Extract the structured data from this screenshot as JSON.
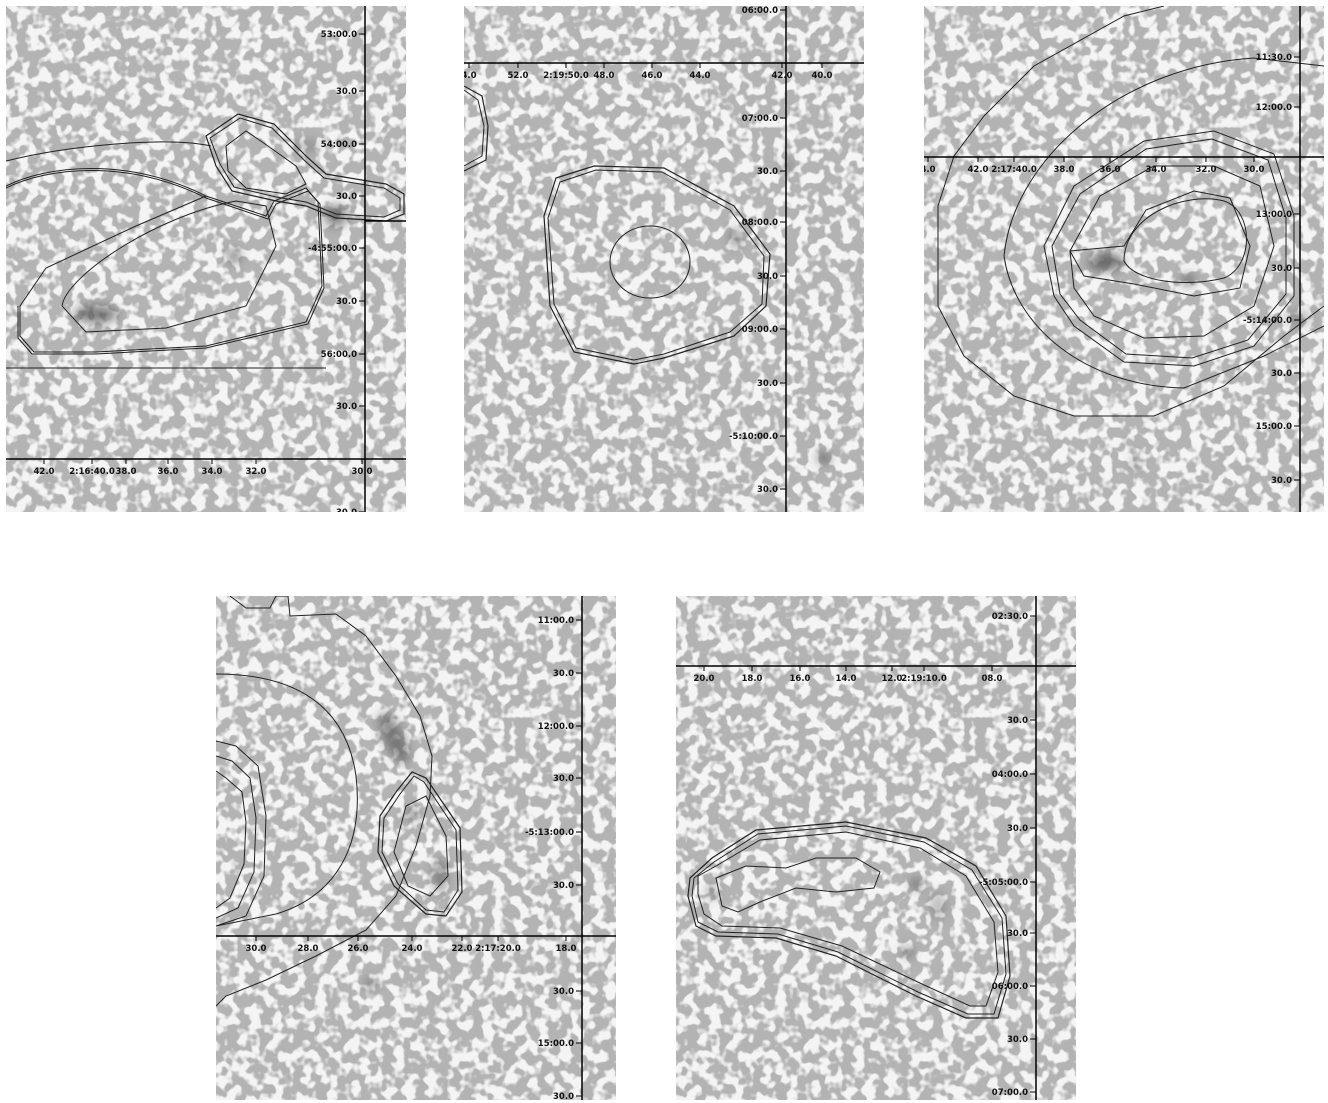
{
  "panels": [
    {
      "id": "panel-1",
      "ra_ticks": [
        "42.0",
        "2:16:40.0",
        "38.0",
        "36.0",
        "34.0",
        "32.0",
        "30.0"
      ],
      "dec_ticks": [
        "53:00.0",
        "30.0",
        "54:00.0",
        "30.0",
        "-4:55:00.0",
        "30.0",
        "56:00.0",
        "30.0",
        "30.0"
      ]
    },
    {
      "id": "panel-2",
      "ra_ticks": [
        "4.0",
        "52.0",
        "2:19:50.0",
        "48.0",
        "46.0",
        "44.0",
        "42.0",
        "40.0"
      ],
      "dec_ticks": [
        "06:00.0",
        "07:00.0",
        "30.0",
        "08:00.0",
        "30.0",
        "09:00.0",
        "30.0",
        "-5:10:00.0",
        "30.0"
      ]
    },
    {
      "id": "panel-3",
      "ra_ticks": [
        "4.0",
        "42.0",
        "2:17:40.0",
        "38.0",
        "36.0",
        "34.0",
        "32.0",
        "30.0"
      ],
      "dec_ticks": [
        "11:30.0",
        "12:00.0",
        "13:00.0",
        "30.0",
        "-5:14:00.0",
        "30.0",
        "15:00.0",
        "30.0"
      ]
    },
    {
      "id": "panel-4",
      "ra_ticks": [
        "30.0",
        "28.0",
        "26.0",
        "24.0",
        "22.0",
        "2:17:20.0",
        "18.0"
      ],
      "dec_ticks": [
        "11:00.0",
        "30.0",
        "12:00.0",
        "30.0",
        "-5:13:00.0",
        "30.0",
        "30.0",
        "15:00.0",
        "30.0"
      ]
    },
    {
      "id": "panel-5",
      "ra_ticks": [
        "20.0",
        "18.0",
        "16.0",
        "14.0",
        "12.0",
        "2:19:10.0",
        "08.0"
      ],
      "dec_ticks": [
        "02:30.0",
        "30.0",
        "04:00.0",
        "30.0",
        "-5:05:00.0",
        "30.0",
        "06:00.0",
        "30.0",
        "07:00.0"
      ]
    }
  ]
}
